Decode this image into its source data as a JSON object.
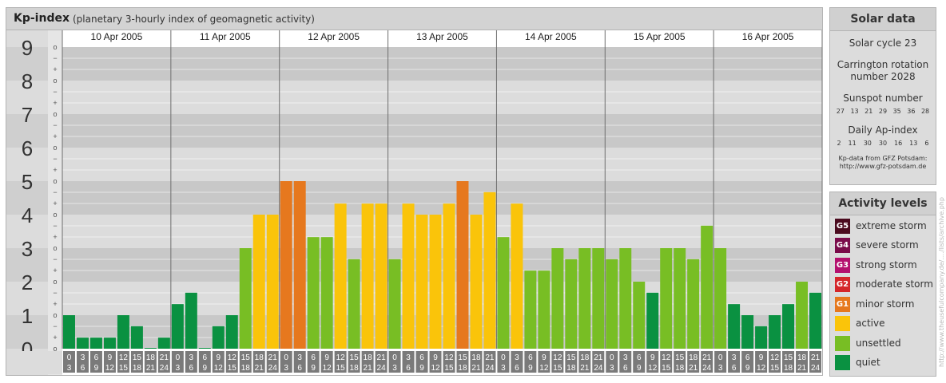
{
  "title": "Kp-index",
  "subtitle": "(planetary 3-hourly index of geomagnetic activity)",
  "chart_data": {
    "type": "bar",
    "ylim": [
      0,
      9
    ],
    "y_major_ticks": [
      "0",
      "1",
      "2",
      "3",
      "4",
      "5",
      "6",
      "7",
      "8",
      "9"
    ],
    "y_minor_tick_labels": [
      "o",
      "+",
      "−"
    ],
    "days": [
      "10 Apr 2005",
      "11 Apr 2005",
      "12 Apr 2005",
      "13 Apr 2005",
      "14 Apr 2005",
      "15 Apr 2005",
      "16 Apr 2005"
    ],
    "interval_start_labels": [
      "0",
      "3",
      "6",
      "9",
      "12",
      "15",
      "18",
      "21"
    ],
    "interval_end_labels": [
      "3",
      "6",
      "9",
      "12",
      "15",
      "18",
      "21",
      "24"
    ],
    "values": [
      1.0,
      0.33,
      0.33,
      0.33,
      1.0,
      0.67,
      0.0,
      0.33,
      1.33,
      1.67,
      0.0,
      0.67,
      1.0,
      3.0,
      4.0,
      4.0,
      5.0,
      5.0,
      3.33,
      3.33,
      4.33,
      2.67,
      4.33,
      4.33,
      2.67,
      4.33,
      4.0,
      4.0,
      4.33,
      5.0,
      4.0,
      4.67,
      3.33,
      4.33,
      2.33,
      2.33,
      3.0,
      2.67,
      3.0,
      3.0,
      2.67,
      3.0,
      2.0,
      1.67,
      3.0,
      3.0,
      2.67,
      3.67,
      3.0,
      1.33,
      1.0,
      0.67,
      1.0,
      1.33,
      2.0,
      1.67
    ]
  },
  "solar": {
    "title": "Solar data",
    "cycle": "Solar cycle 23",
    "carrington": [
      "Carrington rotation",
      "number 2028"
    ],
    "sunspot_title": "Sunspot number",
    "sunspot_values": [
      "27",
      "13",
      "21",
      "29",
      "35",
      "36",
      "28"
    ],
    "ap_title": "Daily Ap-index",
    "ap_values": [
      "2",
      "11",
      "30",
      "30",
      "16",
      "13",
      "6"
    ],
    "source": [
      "Kp-data from GFZ Potsdam:",
      "http://www.gfz-potsdam.de"
    ]
  },
  "activity": {
    "title": "Activity levels",
    "levels": [
      {
        "code": "G5",
        "label": "extreme storm",
        "color": "#4a0a1e"
      },
      {
        "code": "G4",
        "label": "severe storm",
        "color": "#7a0b4a"
      },
      {
        "code": "G3",
        "label": "strong storm",
        "color": "#b4106e"
      },
      {
        "code": "G2",
        "label": "moderate storm",
        "color": "#d5262a"
      },
      {
        "code": "G1",
        "label": "minor storm",
        "color": "#e6781e"
      },
      {
        "code": "",
        "label": "active",
        "color": "#fac40a"
      },
      {
        "code": "",
        "label": "unsettled",
        "color": "#78be24"
      },
      {
        "code": "",
        "label": "quiet",
        "color": "#0a9141"
      }
    ]
  },
  "watermark": "http://www.theusefulcompany.de/..../lists/archive.php"
}
